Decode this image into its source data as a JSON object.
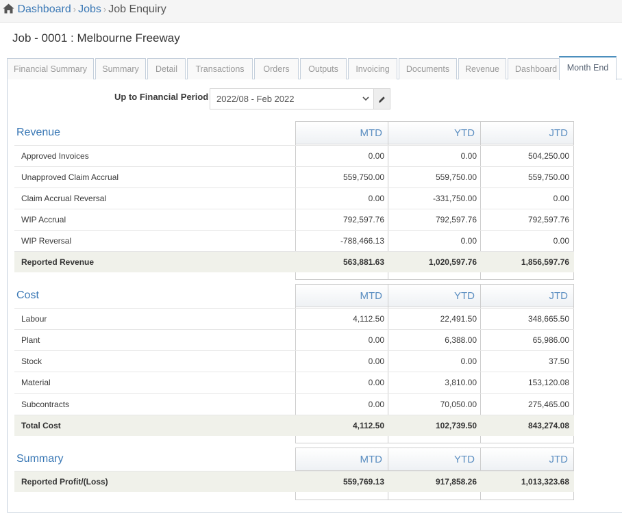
{
  "breadcrumb": {
    "home_icon": "home-icon",
    "items": [
      "Dashboard",
      "Jobs",
      "Job Enquiry"
    ]
  },
  "page_title": "Job - 0001 : Melbourne Freeway",
  "tabs": [
    "Financial Summary",
    "Summary",
    "Detail",
    "Transactions",
    "Orders",
    "Outputs",
    "Invoicing",
    "Documents",
    "Revenue",
    "Dashboard",
    "Month End"
  ],
  "active_tab": "Month End",
  "period": {
    "label": "Up to Financial Period",
    "value": "2022/08 - Feb 2022",
    "edit_icon": "pencil-icon"
  },
  "columns": [
    "MTD",
    "YTD",
    "JTD"
  ],
  "revenue": {
    "title": "Revenue",
    "rows": [
      {
        "label": "Approved Invoices",
        "mtd": "0.00",
        "ytd": "0.00",
        "jtd": "504,250.00"
      },
      {
        "label": "Unapproved Claim Accrual",
        "mtd": "559,750.00",
        "ytd": "559,750.00",
        "jtd": "559,750.00"
      },
      {
        "label": "Claim Accrual Reversal",
        "mtd": "0.00",
        "ytd": "-331,750.00",
        "jtd": "0.00"
      },
      {
        "label": "WIP Accrual",
        "mtd": "792,597.76",
        "ytd": "792,597.76",
        "jtd": "792,597.76"
      },
      {
        "label": "WIP Reversal",
        "mtd": "-788,466.13",
        "ytd": "0.00",
        "jtd": "0.00"
      }
    ],
    "total": {
      "label": "Reported Revenue",
      "mtd": "563,881.63",
      "ytd": "1,020,597.76",
      "jtd": "1,856,597.76"
    }
  },
  "cost": {
    "title": "Cost",
    "rows": [
      {
        "label": "Labour",
        "mtd": "4,112.50",
        "ytd": "22,491.50",
        "jtd": "348,665.50"
      },
      {
        "label": "Plant",
        "mtd": "0.00",
        "ytd": "6,388.00",
        "jtd": "65,986.00"
      },
      {
        "label": "Stock",
        "mtd": "0.00",
        "ytd": "0.00",
        "jtd": "37.50"
      },
      {
        "label": "Material",
        "mtd": "0.00",
        "ytd": "3,810.00",
        "jtd": "153,120.08"
      },
      {
        "label": "Subcontracts",
        "mtd": "0.00",
        "ytd": "70,050.00",
        "jtd": "275,465.00"
      }
    ],
    "total": {
      "label": "Total Cost",
      "mtd": "4,112.50",
      "ytd": "102,739.50",
      "jtd": "843,274.08"
    }
  },
  "summary": {
    "title": "Summary",
    "total": {
      "label": "Reported Profit/(Loss)",
      "mtd": "559,769.13",
      "ytd": "917,858.26",
      "jtd": "1,013,323.68"
    }
  },
  "colors": {
    "link": "#3a78b5",
    "tab_active_border": "#4c8fbd",
    "total_row_bg": "#f0f1ea",
    "column_header_text": "#5b8ec1"
  }
}
